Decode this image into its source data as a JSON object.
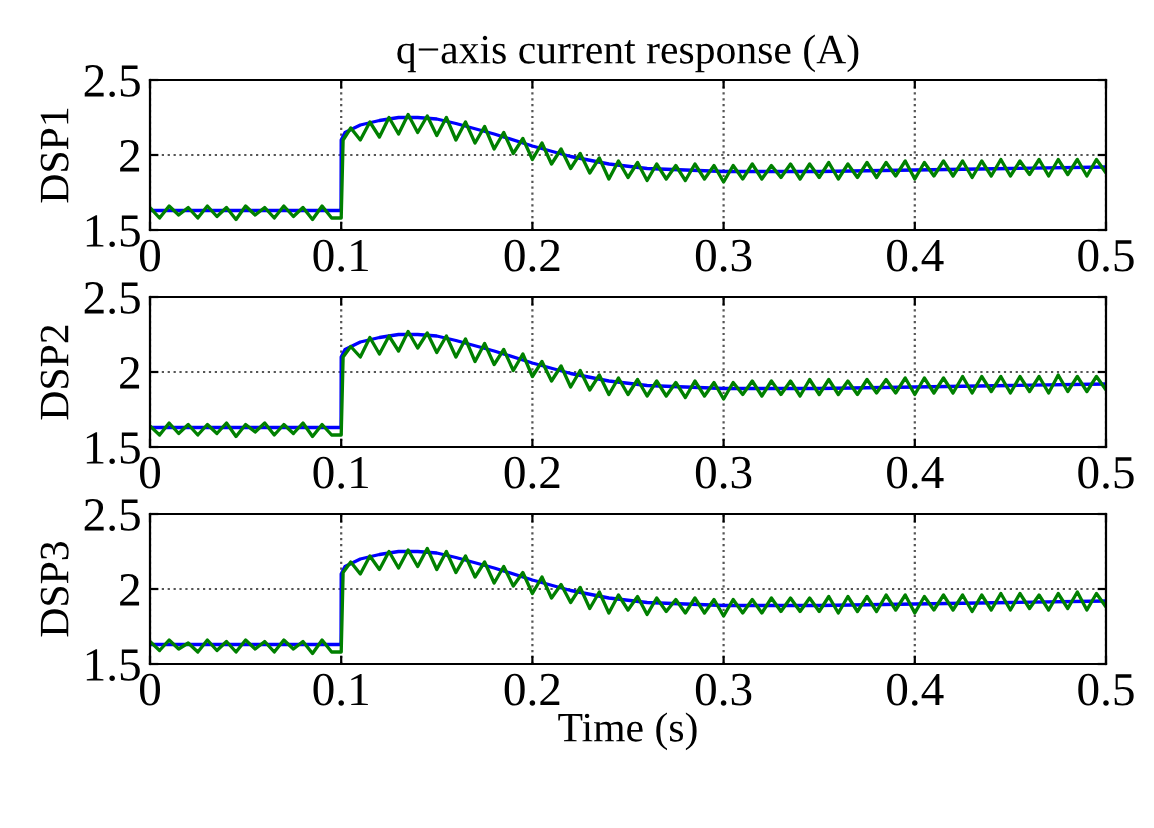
{
  "chart_data": [
    {
      "type": "line",
      "title": "q−axis current response (A)",
      "ylabel": "DSP1",
      "xlim": [
        0,
        0.5
      ],
      "xticks": [
        0,
        0.1,
        0.2,
        0.3,
        0.4,
        0.5
      ],
      "ylim": [
        1.5,
        2.5
      ],
      "yticks": [
        1.5,
        2,
        2.5
      ],
      "grid": true,
      "line_style": "solid",
      "series": [
        {
          "color": "#0000ff",
          "x": [
            0,
            0.0999,
            0.1,
            0.102,
            0.11,
            0.12,
            0.13,
            0.14,
            0.15,
            0.16,
            0.18,
            0.2,
            0.22,
            0.24,
            0.26,
            0.28,
            0.3,
            0.35,
            0.4,
            0.45,
            0.5
          ],
          "values": [
            1.63,
            1.63,
            2.1,
            2.15,
            2.2,
            2.23,
            2.25,
            2.25,
            2.24,
            2.21,
            2.14,
            2.06,
            1.99,
            1.94,
            1.91,
            1.9,
            1.89,
            1.89,
            1.9,
            1.91,
            1.92
          ]
        },
        {
          "color": "#008000",
          "x": [
            0,
            0.005,
            0.01,
            0.015,
            0.02,
            0.025,
            0.03,
            0.035,
            0.04,
            0.045,
            0.05,
            0.055,
            0.06,
            0.065,
            0.07,
            0.075,
            0.08,
            0.085,
            0.09,
            0.095,
            0.1,
            0.101,
            0.105,
            0.11,
            0.115,
            0.12,
            0.125,
            0.13,
            0.135,
            0.14,
            0.145,
            0.15,
            0.155,
            0.16,
            0.165,
            0.17,
            0.175,
            0.18,
            0.185,
            0.19,
            0.195,
            0.2,
            0.205,
            0.21,
            0.215,
            0.22,
            0.225,
            0.23,
            0.235,
            0.24,
            0.245,
            0.25,
            0.255,
            0.26,
            0.265,
            0.27,
            0.275,
            0.28,
            0.285,
            0.29,
            0.295,
            0.3,
            0.305,
            0.31,
            0.315,
            0.32,
            0.325,
            0.33,
            0.335,
            0.34,
            0.345,
            0.35,
            0.355,
            0.36,
            0.365,
            0.37,
            0.375,
            0.38,
            0.385,
            0.39,
            0.395,
            0.4,
            0.405,
            0.41,
            0.415,
            0.42,
            0.425,
            0.43,
            0.435,
            0.44,
            0.445,
            0.45,
            0.455,
            0.46,
            0.465,
            0.47,
            0.475,
            0.48,
            0.485,
            0.49,
            0.495,
            0.5
          ],
          "values": [
            1.65,
            1.58,
            1.66,
            1.6,
            1.65,
            1.58,
            1.66,
            1.59,
            1.65,
            1.57,
            1.66,
            1.6,
            1.65,
            1.58,
            1.66,
            1.59,
            1.65,
            1.57,
            1.66,
            1.58,
            1.58,
            2.1,
            2.18,
            2.1,
            2.22,
            2.12,
            2.25,
            2.14,
            2.27,
            2.15,
            2.26,
            2.13,
            2.25,
            2.1,
            2.22,
            2.08,
            2.19,
            2.04,
            2.15,
            2.01,
            2.11,
            1.97,
            2.08,
            1.94,
            2.04,
            1.91,
            2.01,
            1.88,
            1.98,
            1.84,
            1.96,
            1.85,
            1.95,
            1.83,
            1.94,
            1.84,
            1.93,
            1.83,
            1.94,
            1.84,
            1.93,
            1.82,
            1.93,
            1.84,
            1.94,
            1.84,
            1.93,
            1.85,
            1.94,
            1.84,
            1.94,
            1.85,
            1.95,
            1.84,
            1.94,
            1.85,
            1.95,
            1.85,
            1.95,
            1.86,
            1.96,
            1.84,
            1.95,
            1.86,
            1.96,
            1.86,
            1.96,
            1.85,
            1.96,
            1.86,
            1.97,
            1.86,
            1.96,
            1.87,
            1.97,
            1.86,
            1.97,
            1.87,
            1.97,
            1.86,
            1.97,
            1.88
          ]
        }
      ]
    },
    {
      "type": "line",
      "ylabel": "DSP2",
      "xlim": [
        0,
        0.5
      ],
      "xticks": [
        0,
        0.1,
        0.2,
        0.3,
        0.4,
        0.5
      ],
      "ylim": [
        1.5,
        2.5
      ],
      "yticks": [
        1.5,
        2,
        2.5
      ],
      "grid": true,
      "line_style": "solid",
      "series": [
        {
          "color": "#0000ff",
          "x": [
            0,
            0.0999,
            0.1,
            0.102,
            0.11,
            0.12,
            0.13,
            0.14,
            0.15,
            0.16,
            0.18,
            0.2,
            0.22,
            0.24,
            0.26,
            0.28,
            0.3,
            0.35,
            0.4,
            0.45,
            0.5
          ],
          "values": [
            1.63,
            1.63,
            2.1,
            2.15,
            2.2,
            2.23,
            2.25,
            2.25,
            2.24,
            2.21,
            2.14,
            2.06,
            1.99,
            1.94,
            1.91,
            1.9,
            1.89,
            1.89,
            1.9,
            1.91,
            1.92
          ]
        },
        {
          "color": "#008000",
          "x": [
            0,
            0.005,
            0.01,
            0.015,
            0.02,
            0.025,
            0.03,
            0.035,
            0.04,
            0.045,
            0.05,
            0.055,
            0.06,
            0.065,
            0.07,
            0.075,
            0.08,
            0.085,
            0.09,
            0.095,
            0.1,
            0.101,
            0.105,
            0.11,
            0.115,
            0.12,
            0.125,
            0.13,
            0.135,
            0.14,
            0.145,
            0.15,
            0.155,
            0.16,
            0.165,
            0.17,
            0.175,
            0.18,
            0.185,
            0.19,
            0.195,
            0.2,
            0.205,
            0.21,
            0.215,
            0.22,
            0.225,
            0.23,
            0.235,
            0.24,
            0.245,
            0.25,
            0.255,
            0.26,
            0.265,
            0.27,
            0.275,
            0.28,
            0.285,
            0.29,
            0.295,
            0.3,
            0.305,
            0.31,
            0.315,
            0.32,
            0.325,
            0.33,
            0.335,
            0.34,
            0.345,
            0.35,
            0.355,
            0.36,
            0.365,
            0.37,
            0.375,
            0.38,
            0.385,
            0.39,
            0.395,
            0.4,
            0.405,
            0.41,
            0.415,
            0.42,
            0.425,
            0.43,
            0.435,
            0.44,
            0.445,
            0.45,
            0.455,
            0.46,
            0.465,
            0.47,
            0.475,
            0.48,
            0.485,
            0.49,
            0.495,
            0.5
          ],
          "values": [
            1.64,
            1.58,
            1.66,
            1.59,
            1.65,
            1.58,
            1.65,
            1.59,
            1.66,
            1.57,
            1.65,
            1.6,
            1.66,
            1.58,
            1.65,
            1.59,
            1.66,
            1.57,
            1.65,
            1.58,
            1.58,
            2.1,
            2.17,
            2.1,
            2.23,
            2.12,
            2.24,
            2.14,
            2.27,
            2.16,
            2.26,
            2.13,
            2.24,
            2.1,
            2.22,
            2.07,
            2.19,
            2.05,
            2.15,
            2.01,
            2.12,
            1.97,
            2.07,
            1.94,
            2.04,
            1.9,
            2.01,
            1.88,
            1.98,
            1.85,
            1.96,
            1.85,
            1.95,
            1.84,
            1.94,
            1.84,
            1.93,
            1.83,
            1.94,
            1.84,
            1.93,
            1.82,
            1.93,
            1.85,
            1.94,
            1.84,
            1.94,
            1.85,
            1.94,
            1.84,
            1.95,
            1.85,
            1.95,
            1.85,
            1.94,
            1.85,
            1.95,
            1.86,
            1.95,
            1.86,
            1.96,
            1.85,
            1.96,
            1.86,
            1.96,
            1.86,
            1.97,
            1.86,
            1.97,
            1.87,
            1.97,
            1.86,
            1.97,
            1.87,
            1.97,
            1.86,
            1.98,
            1.87,
            1.97,
            1.87,
            1.97,
            1.88
          ]
        }
      ]
    },
    {
      "type": "line",
      "ylabel": "DSP3",
      "xlabel": "Time (s)",
      "xlim": [
        0,
        0.5
      ],
      "xticks": [
        0,
        0.1,
        0.2,
        0.3,
        0.4,
        0.5
      ],
      "ylim": [
        1.5,
        2.5
      ],
      "yticks": [
        1.5,
        2,
        2.5
      ],
      "grid": true,
      "line_style": "solid",
      "series": [
        {
          "color": "#0000ff",
          "x": [
            0,
            0.0999,
            0.1,
            0.102,
            0.11,
            0.12,
            0.13,
            0.14,
            0.15,
            0.16,
            0.18,
            0.2,
            0.22,
            0.24,
            0.26,
            0.28,
            0.3,
            0.35,
            0.4,
            0.45,
            0.5
          ],
          "values": [
            1.63,
            1.63,
            2.1,
            2.15,
            2.2,
            2.23,
            2.25,
            2.25,
            2.24,
            2.21,
            2.14,
            2.06,
            1.99,
            1.94,
            1.91,
            1.9,
            1.89,
            1.89,
            1.9,
            1.91,
            1.92
          ]
        },
        {
          "color": "#008000",
          "x": [
            0,
            0.005,
            0.01,
            0.015,
            0.02,
            0.025,
            0.03,
            0.035,
            0.04,
            0.045,
            0.05,
            0.055,
            0.06,
            0.065,
            0.07,
            0.075,
            0.08,
            0.085,
            0.09,
            0.095,
            0.1,
            0.101,
            0.105,
            0.11,
            0.115,
            0.12,
            0.125,
            0.13,
            0.135,
            0.14,
            0.145,
            0.15,
            0.155,
            0.16,
            0.165,
            0.17,
            0.175,
            0.18,
            0.185,
            0.19,
            0.195,
            0.2,
            0.205,
            0.21,
            0.215,
            0.22,
            0.225,
            0.23,
            0.235,
            0.24,
            0.245,
            0.25,
            0.255,
            0.26,
            0.265,
            0.27,
            0.275,
            0.28,
            0.285,
            0.29,
            0.295,
            0.3,
            0.305,
            0.31,
            0.315,
            0.32,
            0.325,
            0.33,
            0.335,
            0.34,
            0.345,
            0.35,
            0.355,
            0.36,
            0.365,
            0.37,
            0.375,
            0.38,
            0.385,
            0.39,
            0.395,
            0.4,
            0.405,
            0.41,
            0.415,
            0.42,
            0.425,
            0.43,
            0.435,
            0.44,
            0.445,
            0.45,
            0.455,
            0.46,
            0.465,
            0.47,
            0.475,
            0.48,
            0.485,
            0.49,
            0.495,
            0.5
          ],
          "values": [
            1.65,
            1.59,
            1.66,
            1.6,
            1.64,
            1.58,
            1.66,
            1.59,
            1.65,
            1.58,
            1.66,
            1.6,
            1.65,
            1.58,
            1.66,
            1.6,
            1.65,
            1.57,
            1.66,
            1.58,
            1.58,
            2.11,
            2.18,
            2.1,
            2.22,
            2.13,
            2.25,
            2.14,
            2.26,
            2.15,
            2.27,
            2.13,
            2.25,
            2.11,
            2.22,
            2.08,
            2.18,
            2.04,
            2.15,
            2.02,
            2.11,
            1.97,
            2.08,
            1.94,
            2.03,
            1.91,
            2.01,
            1.87,
            1.98,
            1.84,
            1.96,
            1.86,
            1.95,
            1.83,
            1.94,
            1.85,
            1.93,
            1.84,
            1.94,
            1.84,
            1.93,
            1.82,
            1.93,
            1.84,
            1.93,
            1.84,
            1.94,
            1.85,
            1.94,
            1.85,
            1.94,
            1.85,
            1.95,
            1.84,
            1.95,
            1.85,
            1.95,
            1.85,
            1.96,
            1.86,
            1.96,
            1.84,
            1.95,
            1.86,
            1.96,
            1.86,
            1.96,
            1.85,
            1.96,
            1.86,
            1.97,
            1.86,
            1.97,
            1.87,
            1.96,
            1.86,
            1.97,
            1.87,
            1.98,
            1.86,
            1.97,
            1.88
          ]
        }
      ]
    }
  ]
}
